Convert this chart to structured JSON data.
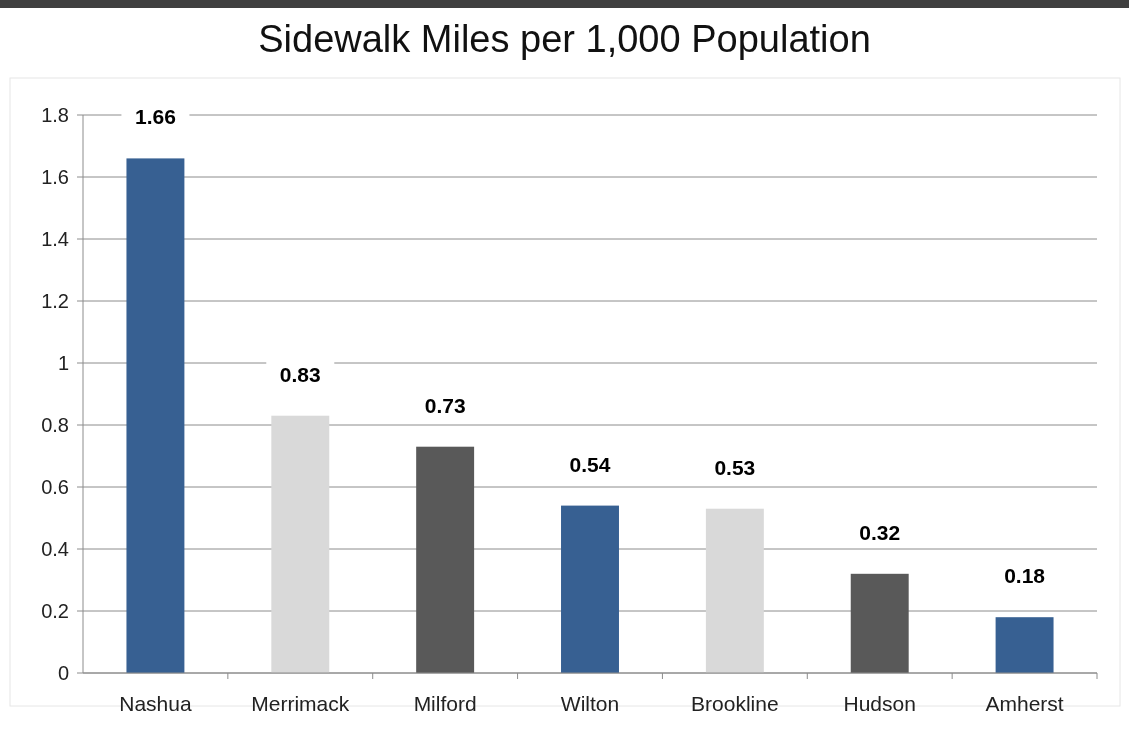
{
  "chart_data": {
    "type": "bar",
    "title": "Sidewalk Miles per 1,000 Population",
    "categories": [
      "Nashua",
      "Merrimack",
      "Milford",
      "Wilton",
      "Brookline",
      "Hudson",
      "Amherst"
    ],
    "values": [
      1.66,
      0.83,
      0.73,
      0.54,
      0.53,
      0.32,
      0.18
    ],
    "colors": [
      "#376092",
      "#d9d9d9",
      "#595959",
      "#376092",
      "#d9d9d9",
      "#595959",
      "#376092"
    ],
    "ylim": [
      0,
      1.8
    ],
    "yticks": [
      0,
      0.2,
      0.4,
      0.6,
      0.8,
      1,
      1.2,
      1.4,
      1.6,
      1.8
    ],
    "grid": "y",
    "data_labels": true
  }
}
